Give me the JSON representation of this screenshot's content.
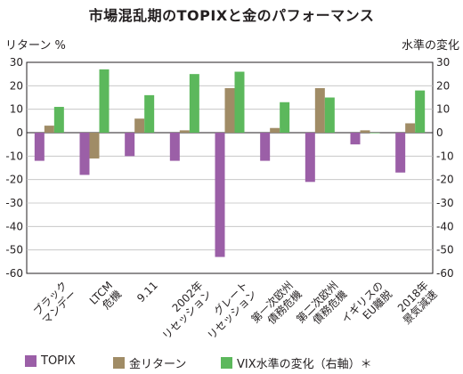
{
  "chart_data": {
    "type": "bar",
    "title": "市場混乱期のTOPIXと金のパフォーマンス",
    "left_axis_label": "リターン %",
    "right_axis_label": "水準の変化",
    "ylim": [
      -60,
      30
    ],
    "y_ticks": [
      30,
      20,
      10,
      0,
      -10,
      -20,
      -30,
      -40,
      -50,
      -60
    ],
    "grid": true,
    "legend_position": "bottom",
    "categories": [
      [
        "ブラック",
        "マンデー"
      ],
      [
        "LTCM",
        "危機"
      ],
      [
        "9.11"
      ],
      [
        "2002年",
        "リセッション"
      ],
      [
        "グレート",
        "リセッション"
      ],
      [
        "第一次欧州",
        "債務危機"
      ],
      [
        "第二次欧州",
        "債務危機"
      ],
      [
        "イギリスの",
        "EU離脱"
      ],
      [
        "2018年",
        "景気減速"
      ]
    ],
    "series": [
      {
        "name": "TOPIX",
        "color": "#9b5fa7",
        "values": [
          -12,
          -18,
          -10,
          -12,
          -53,
          -12,
          -21,
          -5,
          -17
        ]
      },
      {
        "name": "金リターン",
        "color": "#a08c66",
        "values": [
          3,
          -11,
          6,
          1,
          19,
          2,
          19,
          1,
          4
        ]
      },
      {
        "name": "VIX水準の変化（右軸）＊",
        "color": "#5cb85c",
        "values": [
          11,
          27,
          16,
          25,
          26,
          13,
          15,
          0,
          18
        ]
      }
    ]
  }
}
